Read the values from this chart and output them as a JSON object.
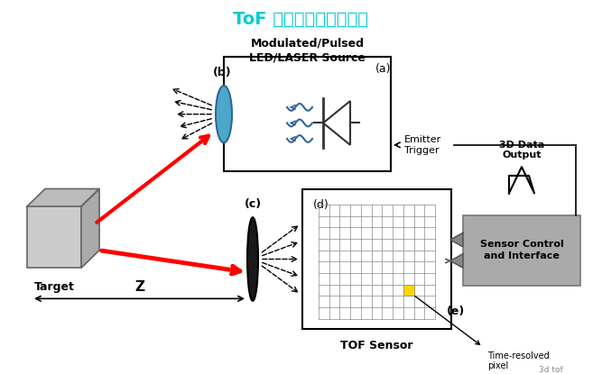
{
  "title": "ToF 模组工作原理示意图",
  "title_color": "#00CCCC",
  "bg_color": "#FFFFFF",
  "fig_width": 6.67,
  "fig_height": 4.15,
  "dpi": 100,
  "label_a": "(a)",
  "label_b": "(b)",
  "label_c": "(c)",
  "label_d": "(d)",
  "label_e": "(e)",
  "text_mod": "Modulated/Pulsed",
  "text_led": "LED/LASER Source",
  "text_target": "Target",
  "text_tof": "TOF Sensor",
  "text_emitter": "Emitter\nTrigger",
  "text_3d": "3D Data\nOutput",
  "text_sensor": "Sensor Control\nand Interface",
  "text_time": "Time-resolved\npixel",
  "text_z": "Z",
  "text_3dtof": "3d tof",
  "cyan_color": "#4BA8C8",
  "dark_lens_color": "#1A1A1A",
  "gray_box_color": "#AAAAAA",
  "grid_color": "#888888",
  "yellow_color": "#FFD700"
}
